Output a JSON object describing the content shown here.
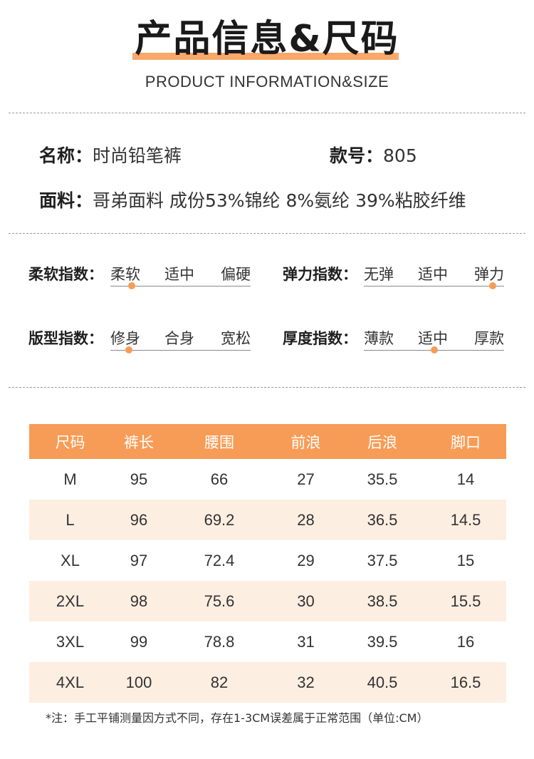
{
  "header": {
    "title": "产品信息&尺码",
    "subtitle": "PRODUCT INFORMATION&SIZE"
  },
  "info": {
    "name_key": "名称：",
    "name_value": "时尚铅笔裤",
    "style_key": "款号：",
    "style_value": "805",
    "fabric_key": "面料：",
    "fabric_value": "哥弟面料 成份53%锦纶 8%氨纶 39%粘胶纤维"
  },
  "indices": [
    {
      "label": "柔软指数：",
      "options": [
        "柔软",
        "适中",
        "偏硬"
      ],
      "selected_position": 0.15
    },
    {
      "label": "弹力指数：",
      "options": [
        "无弹",
        "适中",
        "弹力"
      ],
      "selected_position": 0.92
    },
    {
      "label": "版型指数：",
      "options": [
        "修身",
        "合身",
        "宽松"
      ],
      "selected_position": 0.13
    },
    {
      "label": "厚度指数：",
      "options": [
        "薄款",
        "适中",
        "厚款"
      ],
      "selected_position": 0.5
    }
  ],
  "size_table": {
    "headers": [
      "尺码",
      "裤长",
      "腰围",
      "前浪",
      "后浪",
      "脚口"
    ],
    "rows": [
      [
        "M",
        "95",
        "66",
        "27",
        "35.5",
        "14"
      ],
      [
        "L",
        "96",
        "69.2",
        "28",
        "36.5",
        "14.5"
      ],
      [
        "XL",
        "97",
        "72.4",
        "29",
        "37.5",
        "15"
      ],
      [
        "2XL",
        "98",
        "75.6",
        "30",
        "38.5",
        "15.5"
      ],
      [
        "3XL",
        "99",
        "78.8",
        "31",
        "39.5",
        "16"
      ],
      [
        "4XL",
        "100",
        "82",
        "32",
        "40.5",
        "16.5"
      ]
    ]
  },
  "note": "*注：手工平铺测量因方式不同，存在1-3CM误差属于正常范围（单位:CM）",
  "colors": {
    "accent": "#f79c56",
    "row_shade": "#fdeee2",
    "title_bar": "#f9a86b"
  }
}
